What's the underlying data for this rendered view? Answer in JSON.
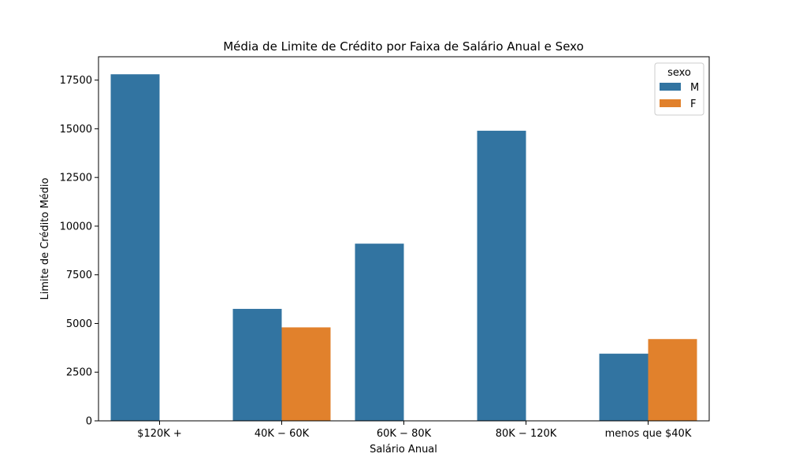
{
  "chart_data": {
    "type": "bar",
    "title": "Média de Limite de Crédito por Faixa de Salário Anual e Sexo",
    "xlabel": "Salário Anual",
    "ylabel": "Limite de Crédito Médio",
    "categories": [
      "$120K +",
      "$40K - $60K",
      "$60K - $80K",
      "$80K - $120K",
      "menos que $40K"
    ],
    "category_labels": [
      "$120K +",
      "40K − 60K",
      "60K − 80K",
      "80K − 120K",
      "menos que $40K"
    ],
    "series": [
      {
        "name": "M",
        "color": "#3274a1",
        "values": [
          17800,
          5750,
          9100,
          14900,
          3450
        ]
      },
      {
        "name": "F",
        "color": "#e1812c",
        "values": [
          null,
          4800,
          null,
          null,
          4200
        ]
      }
    ],
    "ylim": [
      0,
      18700
    ],
    "yticks": [
      0,
      2500,
      5000,
      7500,
      10000,
      12500,
      15000,
      17500
    ],
    "grid": false,
    "legend": {
      "title": "sexo",
      "placement": "top-right"
    }
  }
}
